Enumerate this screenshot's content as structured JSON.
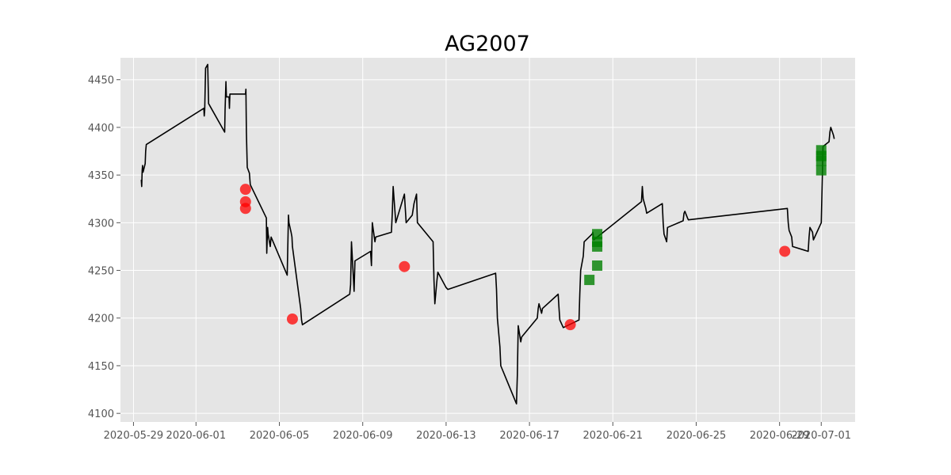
{
  "chart_data": {
    "type": "line",
    "title": "AG2007",
    "xlabel": "",
    "ylabel": "",
    "grid": true,
    "legend": "none",
    "xlim": [
      "2020-05-28T09:00",
      "2020-07-02T15:00"
    ],
    "ylim": [
      4091,
      4473
    ],
    "x_ticks": [
      "2020-05-29",
      "2020-06-01",
      "2020-06-05",
      "2020-06-09",
      "2020-06-13",
      "2020-06-17",
      "2020-06-21",
      "2020-06-25",
      "2020-06-29",
      "2020-07-01"
    ],
    "y_ticks": [
      4100,
      4150,
      4200,
      4250,
      4300,
      4350,
      4400,
      4450
    ],
    "colors": {
      "price_line": "#000000",
      "sell_marker": "#ff0000",
      "buy_marker": "#008000",
      "plot_bg": "#e5e5e5",
      "grid": "#ffffff",
      "tick_text": "#555555"
    },
    "series": [
      {
        "type": "line",
        "x": [
          "2020-05-29T09:00",
          "2020-05-29T09:30",
          "2020-05-29T10:00",
          "2020-05-29T10:30",
          "2020-05-29T11:00",
          "2020-05-29T13:30",
          "2020-05-29T14:00",
          "2020-05-29T14:45",
          "2020-06-01T09:00",
          "2020-06-01T09:30",
          "2020-06-01T10:00",
          "2020-06-01T10:30",
          "2020-06-01T11:00",
          "2020-06-01T13:30",
          "2020-06-01T14:00",
          "2020-06-01T14:30",
          "2020-06-02T09:00",
          "2020-06-02T09:30",
          "2020-06-02T10:30",
          "2020-06-02T11:00",
          "2020-06-02T14:00",
          "2020-06-02T14:30",
          "2020-06-02T15:00",
          "2020-06-03T09:00",
          "2020-06-03T09:30",
          "2020-06-03T10:00",
          "2020-06-03T11:00",
          "2020-06-03T13:30",
          "2020-06-03T14:30",
          "2020-06-04T09:00",
          "2020-06-04T09:30",
          "2020-06-04T10:30",
          "2020-06-04T11:00",
          "2020-06-04T13:30",
          "2020-06-04T14:30",
          "2020-06-05T09:00",
          "2020-06-05T09:30",
          "2020-06-05T10:30",
          "2020-06-05T11:00",
          "2020-06-05T13:30",
          "2020-06-05T14:30",
          "2020-06-05T15:00",
          "2020-06-06T00:30",
          "2020-06-06T01:30",
          "2020-06-06T02:30",
          "2020-06-08T09:00",
          "2020-06-08T10:00",
          "2020-06-08T11:00",
          "2020-06-08T14:00",
          "2020-06-08T15:00",
          "2020-06-09T09:00",
          "2020-06-09T10:00",
          "2020-06-09T11:00",
          "2020-06-09T14:00",
          "2020-06-09T15:00",
          "2020-06-10T09:00",
          "2020-06-10T10:00",
          "2020-06-10T11:00",
          "2020-06-10T14:00",
          "2020-06-11T00:00",
          "2020-06-11T02:00",
          "2020-06-11T09:00",
          "2020-06-11T11:00",
          "2020-06-11T14:00",
          "2020-06-11T15:00",
          "2020-06-12T09:00",
          "2020-06-12T10:00",
          "2020-06-12T11:00",
          "2020-06-12T13:30",
          "2020-06-12T14:30",
          "2020-06-13T00:00",
          "2020-06-13T02:00",
          "2020-06-15T09:00",
          "2020-06-15T10:00",
          "2020-06-15T11:00",
          "2020-06-15T14:00",
          "2020-06-15T15:00",
          "2020-06-16T09:00",
          "2020-06-16T10:00",
          "2020-06-16T11:00",
          "2020-06-16T14:00",
          "2020-06-16T15:00",
          "2020-06-17T09:00",
          "2020-06-17T10:00",
          "2020-06-17T11:00",
          "2020-06-17T14:00",
          "2020-06-17T15:00",
          "2020-06-18T09:00",
          "2020-06-18T10:00",
          "2020-06-18T11:00",
          "2020-06-18T14:00",
          "2020-06-18T15:00",
          "2020-06-19T09:00",
          "2020-06-19T10:00",
          "2020-06-19T11:00",
          "2020-06-19T14:00",
          "2020-06-19T15:00",
          "2020-06-20T00:00",
          "2020-06-20T01:00",
          "2020-06-20T02:00",
          "2020-06-22T09:00",
          "2020-06-22T10:00",
          "2020-06-22T11:00",
          "2020-06-22T14:00",
          "2020-06-22T15:00",
          "2020-06-23T09:00",
          "2020-06-23T10:00",
          "2020-06-23T11:00",
          "2020-06-23T14:00",
          "2020-06-23T15:00",
          "2020-06-24T09:00",
          "2020-06-24T10:00",
          "2020-06-24T11:00",
          "2020-06-24T14:00",
          "2020-06-24T15:00",
          "2020-06-29T09:00",
          "2020-06-29T10:00",
          "2020-06-29T11:00",
          "2020-06-29T14:00",
          "2020-06-29T15:00",
          "2020-06-30T09:00",
          "2020-06-30T10:00",
          "2020-06-30T11:00",
          "2020-06-30T14:00",
          "2020-06-30T15:00",
          "2020-07-01T00:00",
          "2020-07-01T02:00",
          "2020-07-01T09:00",
          "2020-07-01T10:00",
          "2020-07-01T11:00",
          "2020-07-01T14:00",
          "2020-07-01T15:00"
        ],
        "y": [
          4345,
          4338,
          4355,
          4360,
          4353,
          4362,
          4375,
          4382,
          4420,
          4412,
          4418,
          4438,
          4462,
          4466,
          4443,
          4425,
          4395,
          4418,
          4448,
          4432,
          4432,
          4420,
          4435,
          4435,
          4440,
          4395,
          4358,
          4352,
          4340,
          4305,
          4268,
          4295,
          4288,
          4275,
          4285,
          4245,
          4265,
          4308,
          4300,
          4290,
          4285,
          4275,
          4210,
          4198,
          4193,
          4225,
          4235,
          4280,
          4228,
          4260,
          4270,
          4255,
          4300,
          4280,
          4285,
          4290,
          4310,
          4338,
          4300,
          4330,
          4300,
          4308,
          4320,
          4330,
          4300,
          4280,
          4240,
          4215,
          4240,
          4248,
          4232,
          4230,
          4247,
          4230,
          4200,
          4170,
          4150,
          4110,
          4140,
          4192,
          4175,
          4180,
          4200,
          4210,
          4215,
          4205,
          4210,
          4225,
          4210,
          4198,
          4192,
          4190,
          4198,
          4225,
          4250,
          4265,
          4280,
          4288,
          4290,
          4282,
          4322,
          4338,
          4325,
          4315,
          4310,
          4320,
          4300,
          4288,
          4280,
          4295,
          4302,
          4310,
          4312,
          4305,
          4303,
          4315,
          4300,
          4292,
          4285,
          4275,
          4270,
          4285,
          4295,
          4290,
          4282,
          4300,
          4380,
          4385,
          4395,
          4400,
          4392,
          4388
        ]
      },
      {
        "type": "scatter",
        "marker": "circle",
        "x": [
          "2020-06-03T09:00",
          "2020-06-03T09:00",
          "2020-06-03T09:00",
          "2020-06-05T15:00",
          "2020-06-11T00:00",
          "2020-06-18T23:00",
          "2020-06-29T06:00"
        ],
        "y": [
          4335,
          4322,
          4315,
          4199,
          4254,
          4193,
          4270
        ]
      },
      {
        "type": "scatter",
        "marker": "square",
        "x": [
          "2020-06-19T21:00",
          "2020-06-20T06:00",
          "2020-06-20T06:00",
          "2020-06-20T06:00",
          "2020-06-20T06:00",
          "2020-07-01T00:00",
          "2020-07-01T00:00",
          "2020-07-01T00:00",
          "2020-07-01T00:00"
        ],
        "y": [
          4240,
          4255,
          4275,
          4280,
          4288,
          4355,
          4365,
          4370,
          4376
        ]
      }
    ]
  }
}
